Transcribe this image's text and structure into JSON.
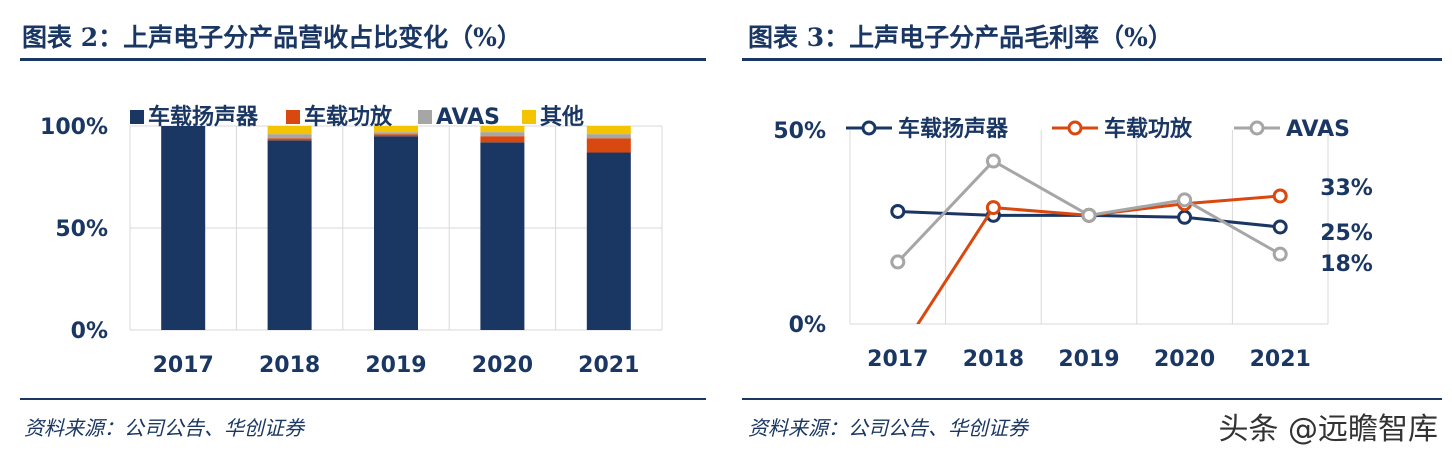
{
  "left": {
    "title": "图表 2：上声电子分产品营收占比变化（%）",
    "source": "资料来源：公司公告、华创证券",
    "chart_data": {
      "type": "bar",
      "stacked": true,
      "categories": [
        "2017",
        "2018",
        "2019",
        "2020",
        "2021"
      ],
      "ylim": [
        0,
        100
      ],
      "yticks": [
        "0%",
        "50%",
        "100%"
      ],
      "grid": true,
      "legend": "top",
      "series": [
        {
          "name": "车载扬声器",
          "color": "#1a3764",
          "values": [
            100,
            93,
            95,
            92,
            87
          ]
        },
        {
          "name": "车载功放",
          "color": "#d9480f",
          "values": [
            0,
            1,
            1,
            3,
            7
          ]
        },
        {
          "name": "AVAS",
          "color": "#a6a6a6",
          "values": [
            0,
            2,
            1,
            2,
            2
          ]
        },
        {
          "name": "其他",
          "color": "#f5c400",
          "values": [
            0,
            4,
            3,
            3,
            4
          ]
        }
      ]
    }
  },
  "right": {
    "title": "图表 3：上声电子分产品毛利率（%）",
    "source": "资料来源：公司公告、华创证券",
    "watermark": "头条 @远瞻智库",
    "chart_data": {
      "type": "line",
      "categories": [
        "2017",
        "2018",
        "2019",
        "2020",
        "2021"
      ],
      "ylim": [
        0,
        50
      ],
      "yticks": [
        "0%",
        "50%"
      ],
      "grid": true,
      "legend": "top",
      "series": [
        {
          "name": "车载扬声器",
          "color": "#1a3764",
          "values": [
            29,
            28,
            28,
            27.5,
            25
          ],
          "end_label": "25%"
        },
        {
          "name": "车载功放",
          "color": "#d9480f",
          "values": [
            -8,
            30,
            28,
            31,
            33
          ],
          "end_label": "33%"
        },
        {
          "name": "AVAS",
          "color": "#a6a6a6",
          "values": [
            16,
            42,
            28,
            32,
            18
          ],
          "end_label": "18%"
        }
      ]
    }
  }
}
